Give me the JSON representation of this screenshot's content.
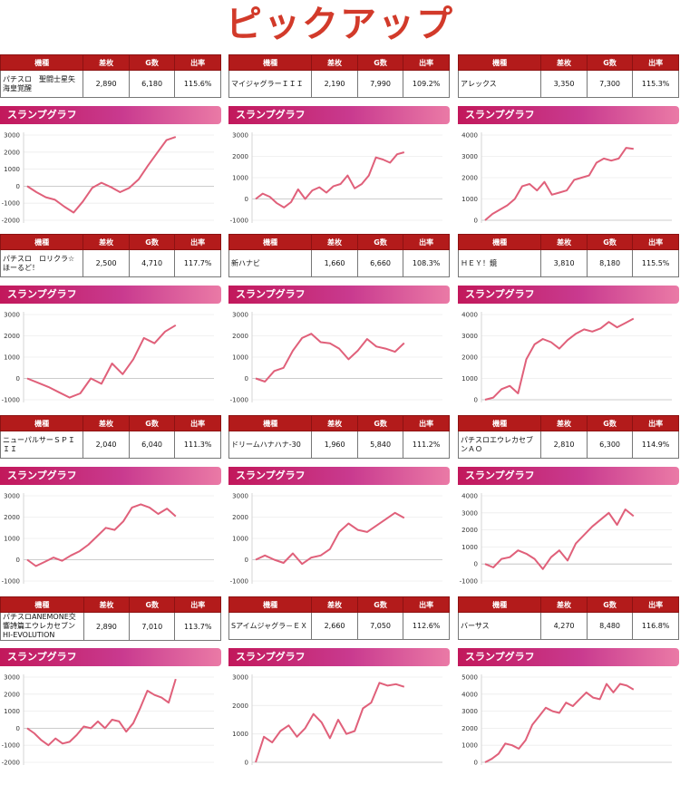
{
  "page_title": "ピックアップ",
  "table_headers": [
    "機種",
    "差枚",
    "G数",
    "出率"
  ],
  "graph_title": "スランプグラフ",
  "line_color": "#e0607a",
  "machines": [
    {
      "name": "パチスロ　聖闘士星矢海皇覚醒",
      "diff": "2,890",
      "games": "6,180",
      "rate": "115.6%",
      "chart": {
        "ylim": [
          -2000,
          3000
        ],
        "ticks": [
          "3000",
          "2000",
          "1000",
          "0",
          "-1000",
          "-2000"
        ],
        "tick_values": [
          3000,
          2000,
          1000,
          0,
          -1000,
          -2000
        ],
        "points": [
          [
            0,
            0
          ],
          [
            1,
            -350
          ],
          [
            2,
            -650
          ],
          [
            3,
            -800
          ],
          [
            4,
            -1200
          ],
          [
            5,
            -1550
          ],
          [
            6,
            -900
          ],
          [
            7,
            -100
          ],
          [
            8,
            200
          ],
          [
            9,
            -50
          ],
          [
            10,
            -350
          ],
          [
            11,
            -100
          ],
          [
            12,
            400
          ],
          [
            13,
            1200
          ],
          [
            14,
            1950
          ],
          [
            15,
            2700
          ],
          [
            16,
            2890
          ]
        ]
      }
    },
    {
      "name": "マイジャグラーＩＩＩ",
      "diff": "2,190",
      "games": "7,990",
      "rate": "109.2%",
      "chart": {
        "ylim": [
          -1000,
          3000
        ],
        "ticks": [
          "3000",
          "2000",
          "1000",
          "0",
          "-1000"
        ],
        "tick_values": [
          3000,
          2000,
          1000,
          0,
          -1000
        ],
        "points": [
          [
            0,
            0
          ],
          [
            1,
            250
          ],
          [
            2,
            100
          ],
          [
            3,
            -200
          ],
          [
            4,
            -400
          ],
          [
            5,
            -150
          ],
          [
            6,
            450
          ],
          [
            7,
            0
          ],
          [
            8,
            400
          ],
          [
            9,
            550
          ],
          [
            10,
            300
          ],
          [
            11,
            600
          ],
          [
            12,
            700
          ],
          [
            13,
            1100
          ],
          [
            14,
            500
          ],
          [
            15,
            700
          ],
          [
            16,
            1100
          ],
          [
            17,
            1950
          ],
          [
            18,
            1850
          ],
          [
            19,
            1700
          ],
          [
            20,
            2100
          ],
          [
            21,
            2190
          ]
        ]
      }
    },
    {
      "name": "アレックス",
      "diff": "3,350",
      "games": "7,300",
      "rate": "115.3%",
      "chart": {
        "ylim": [
          0,
          4000
        ],
        "ticks": [
          "4000",
          "3000",
          "2000",
          "1000",
          "0"
        ],
        "tick_values": [
          4000,
          3000,
          2000,
          1000,
          0
        ],
        "points": [
          [
            0,
            0
          ],
          [
            1,
            300
          ],
          [
            2,
            500
          ],
          [
            3,
            700
          ],
          [
            4,
            1000
          ],
          [
            5,
            1600
          ],
          [
            6,
            1700
          ],
          [
            7,
            1400
          ],
          [
            8,
            1800
          ],
          [
            9,
            1200
          ],
          [
            10,
            1300
          ],
          [
            11,
            1400
          ],
          [
            12,
            1900
          ],
          [
            13,
            2000
          ],
          [
            14,
            2100
          ],
          [
            15,
            2700
          ],
          [
            16,
            2900
          ],
          [
            17,
            2800
          ],
          [
            18,
            2900
          ],
          [
            19,
            3400
          ],
          [
            20,
            3350
          ]
        ]
      }
    },
    {
      "name": "パチスロ　ロリクラ☆ほーるど！",
      "diff": "2,500",
      "games": "4,710",
      "rate": "117.7%",
      "chart": {
        "ylim": [
          -1000,
          3000
        ],
        "ticks": [
          "3000",
          "2000",
          "1000",
          "0",
          "-1000"
        ],
        "tick_values": [
          3000,
          2000,
          1000,
          0,
          -1000
        ],
        "points": [
          [
            0,
            0
          ],
          [
            1,
            -200
          ],
          [
            2,
            -400
          ],
          [
            3,
            -650
          ],
          [
            4,
            -900
          ],
          [
            5,
            -700
          ],
          [
            6,
            0
          ],
          [
            7,
            -250
          ],
          [
            8,
            700
          ],
          [
            9,
            200
          ],
          [
            10,
            900
          ],
          [
            11,
            1900
          ],
          [
            12,
            1650
          ],
          [
            13,
            2200
          ],
          [
            14,
            2500
          ]
        ]
      }
    },
    {
      "name": "新ハナビ",
      "diff": "1,660",
      "games": "6,660",
      "rate": "108.3%",
      "chart": {
        "ylim": [
          -1000,
          3000
        ],
        "ticks": [
          "3000",
          "2000",
          "1000",
          "0",
          "-1000"
        ],
        "tick_values": [
          3000,
          2000,
          1000,
          0,
          -1000
        ],
        "points": [
          [
            0,
            0
          ],
          [
            1,
            -150
          ],
          [
            2,
            350
          ],
          [
            3,
            500
          ],
          [
            4,
            1300
          ],
          [
            5,
            1900
          ],
          [
            6,
            2100
          ],
          [
            7,
            1700
          ],
          [
            8,
            1650
          ],
          [
            9,
            1400
          ],
          [
            10,
            900
          ],
          [
            11,
            1300
          ],
          [
            12,
            1850
          ],
          [
            13,
            1500
          ],
          [
            14,
            1400
          ],
          [
            15,
            1250
          ],
          [
            16,
            1660
          ]
        ]
      }
    },
    {
      "name": "ＨＥＹ！鏡",
      "diff": "3,810",
      "games": "8,180",
      "rate": "115.5%",
      "chart": {
        "ylim": [
          0,
          4000
        ],
        "ticks": [
          "4000",
          "3000",
          "2000",
          "1000",
          "0"
        ],
        "tick_values": [
          4000,
          3000,
          2000,
          1000,
          0
        ],
        "points": [
          [
            0,
            0
          ],
          [
            1,
            100
          ],
          [
            2,
            500
          ],
          [
            3,
            650
          ],
          [
            4,
            300
          ],
          [
            5,
            1900
          ],
          [
            6,
            2600
          ],
          [
            7,
            2850
          ],
          [
            8,
            2700
          ],
          [
            9,
            2400
          ],
          [
            10,
            2800
          ],
          [
            11,
            3100
          ],
          [
            12,
            3300
          ],
          [
            13,
            3200
          ],
          [
            14,
            3350
          ],
          [
            15,
            3650
          ],
          [
            16,
            3400
          ],
          [
            17,
            3600
          ],
          [
            18,
            3810
          ]
        ]
      }
    },
    {
      "name": "ニューパルサーＳＰＩＩＩ",
      "diff": "2,040",
      "games": "6,040",
      "rate": "111.3%",
      "chart": {
        "ylim": [
          -1000,
          3000
        ],
        "ticks": [
          "3000",
          "2000",
          "1000",
          "0",
          "-1000"
        ],
        "tick_values": [
          3000,
          2000,
          1000,
          0,
          -1000
        ],
        "points": [
          [
            0,
            0
          ],
          [
            1,
            -300
          ],
          [
            2,
            -100
          ],
          [
            3,
            100
          ],
          [
            4,
            -50
          ],
          [
            5,
            200
          ],
          [
            6,
            400
          ],
          [
            7,
            700
          ],
          [
            8,
            1100
          ],
          [
            9,
            1500
          ],
          [
            10,
            1400
          ],
          [
            11,
            1800
          ],
          [
            12,
            2450
          ],
          [
            13,
            2600
          ],
          [
            14,
            2450
          ],
          [
            15,
            2150
          ],
          [
            16,
            2400
          ],
          [
            17,
            2040
          ]
        ]
      }
    },
    {
      "name": "ドリームハナハナ-30",
      "diff": "1,960",
      "games": "5,840",
      "rate": "111.2%",
      "chart": {
        "ylim": [
          -1000,
          3000
        ],
        "ticks": [
          "3000",
          "2000",
          "1000",
          "0",
          "-1000"
        ],
        "tick_values": [
          3000,
          2000,
          1000,
          0,
          -1000
        ],
        "points": [
          [
            0,
            0
          ],
          [
            1,
            200
          ],
          [
            2,
            0
          ],
          [
            3,
            -150
          ],
          [
            4,
            300
          ],
          [
            5,
            -200
          ],
          [
            6,
            100
          ],
          [
            7,
            200
          ],
          [
            8,
            500
          ],
          [
            9,
            1300
          ],
          [
            10,
            1700
          ],
          [
            11,
            1400
          ],
          [
            12,
            1300
          ],
          [
            13,
            1600
          ],
          [
            14,
            1900
          ],
          [
            15,
            2200
          ],
          [
            16,
            1960
          ]
        ]
      }
    },
    {
      "name": "パチスロエウレカセブンＡＯ",
      "diff": "2,810",
      "games": "6,300",
      "rate": "114.9%",
      "chart": {
        "ylim": [
          -1000,
          4000
        ],
        "ticks": [
          "4000",
          "3000",
          "2000",
          "1000",
          "0",
          "-1000"
        ],
        "tick_values": [
          4000,
          3000,
          2000,
          1000,
          0,
          -1000
        ],
        "points": [
          [
            0,
            0
          ],
          [
            1,
            -200
          ],
          [
            2,
            300
          ],
          [
            3,
            400
          ],
          [
            4,
            800
          ],
          [
            5,
            600
          ],
          [
            6,
            300
          ],
          [
            7,
            -300
          ],
          [
            8,
            400
          ],
          [
            9,
            800
          ],
          [
            10,
            200
          ],
          [
            11,
            1200
          ],
          [
            12,
            1700
          ],
          [
            13,
            2200
          ],
          [
            14,
            2600
          ],
          [
            15,
            3000
          ],
          [
            16,
            2300
          ],
          [
            17,
            3200
          ],
          [
            18,
            2810
          ]
        ]
      }
    },
    {
      "name": "パチスロANEMONE交響詩篇エウレカセブンHI-EVOLUTION",
      "diff": "2,890",
      "games": "7,010",
      "rate": "113.7%",
      "chart": {
        "ylim": [
          -2000,
          3000
        ],
        "ticks": [
          "3000",
          "2000",
          "1000",
          "0",
          "-1000",
          "-2000"
        ],
        "tick_values": [
          3000,
          2000,
          1000,
          0,
          -1000,
          -2000
        ],
        "points": [
          [
            0,
            0
          ],
          [
            1,
            -300
          ],
          [
            2,
            -700
          ],
          [
            3,
            -1000
          ],
          [
            4,
            -600
          ],
          [
            5,
            -900
          ],
          [
            6,
            -800
          ],
          [
            7,
            -400
          ],
          [
            8,
            100
          ],
          [
            9,
            0
          ],
          [
            10,
            400
          ],
          [
            11,
            0
          ],
          [
            12,
            500
          ],
          [
            13,
            400
          ],
          [
            14,
            -200
          ],
          [
            15,
            300
          ],
          [
            16,
            1200
          ],
          [
            17,
            2200
          ],
          [
            18,
            1950
          ],
          [
            19,
            1800
          ],
          [
            20,
            1500
          ],
          [
            21,
            2890
          ]
        ]
      }
    },
    {
      "name": "Sアイムジャグラ－ＥＸ",
      "diff": "2,660",
      "games": "7,050",
      "rate": "112.6%",
      "chart": {
        "ylim": [
          0,
          3000
        ],
        "ticks": [
          "3000",
          "2000",
          "1000",
          "0"
        ],
        "tick_values": [
          3000,
          2000,
          1000,
          0
        ],
        "points": [
          [
            0,
            0
          ],
          [
            1,
            900
          ],
          [
            2,
            700
          ],
          [
            3,
            1100
          ],
          [
            4,
            1300
          ],
          [
            5,
            900
          ],
          [
            6,
            1200
          ],
          [
            7,
            1700
          ],
          [
            8,
            1400
          ],
          [
            9,
            850
          ],
          [
            10,
            1500
          ],
          [
            11,
            1000
          ],
          [
            12,
            1100
          ],
          [
            13,
            1900
          ],
          [
            14,
            2100
          ],
          [
            15,
            2800
          ],
          [
            16,
            2700
          ],
          [
            17,
            2750
          ],
          [
            18,
            2660
          ]
        ]
      }
    },
    {
      "name": "バーサス",
      "diff": "4,270",
      "games": "8,480",
      "rate": "116.8%",
      "chart": {
        "ylim": [
          0,
          5000
        ],
        "ticks": [
          "5000",
          "4000",
          "3000",
          "2000",
          "1000",
          "0"
        ],
        "tick_values": [
          5000,
          4000,
          3000,
          2000,
          1000,
          0
        ],
        "points": [
          [
            0,
            0
          ],
          [
            1,
            200
          ],
          [
            2,
            500
          ],
          [
            3,
            1100
          ],
          [
            4,
            1000
          ],
          [
            5,
            800
          ],
          [
            6,
            1300
          ],
          [
            7,
            2200
          ],
          [
            8,
            2700
          ],
          [
            9,
            3200
          ],
          [
            10,
            3000
          ],
          [
            11,
            2900
          ],
          [
            12,
            3500
          ],
          [
            13,
            3300
          ],
          [
            14,
            3700
          ],
          [
            15,
            4100
          ],
          [
            16,
            3800
          ],
          [
            17,
            3700
          ],
          [
            18,
            4600
          ],
          [
            19,
            4100
          ],
          [
            20,
            4600
          ],
          [
            21,
            4500
          ],
          [
            22,
            4270
          ]
        ]
      }
    }
  ]
}
